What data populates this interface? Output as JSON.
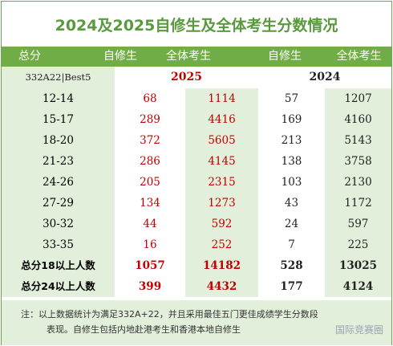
{
  "title": "2024及2025自修生及全体考生分数情况",
  "header": {
    "score_label": "总分",
    "self_2025": "自修生",
    "all_2025": "全体考生",
    "self_2024": "自修生",
    "all_2024": "全体考生"
  },
  "subheader": {
    "scheme": "332A22|Best5",
    "year_2025": "2025",
    "year_2024": "2024"
  },
  "rows": [
    {
      "band": "12-14",
      "self_2025": "68",
      "all_2025": "1114",
      "self_2024": "57",
      "all_2024": "1207"
    },
    {
      "band": "15-17",
      "self_2025": "289",
      "all_2025": "4416",
      "self_2024": "169",
      "all_2024": "4160"
    },
    {
      "band": "18-20",
      "self_2025": "372",
      "all_2025": "5605",
      "self_2024": "213",
      "all_2024": "5143"
    },
    {
      "band": "21-23",
      "self_2025": "286",
      "all_2025": "4145",
      "self_2024": "138",
      "all_2024": "3758"
    },
    {
      "band": "24-26",
      "self_2025": "205",
      "all_2025": "2315",
      "self_2024": "103",
      "all_2024": "2130"
    },
    {
      "band": "27-29",
      "self_2025": "134",
      "all_2025": "1273",
      "self_2024": "43",
      "all_2024": "1172"
    },
    {
      "band": "30-32",
      "self_2025": "44",
      "all_2025": "592",
      "self_2024": "24",
      "all_2024": "597"
    },
    {
      "band": "33-35",
      "self_2025": "16",
      "all_2025": "252",
      "self_2024": "7",
      "all_2024": "225"
    },
    {
      "band": "总分18以上人数",
      "self_2025": "1057",
      "all_2025": "14182",
      "self_2024": "528",
      "all_2024": "13025"
    },
    {
      "band": "总分24以上人数",
      "self_2025": "399",
      "all_2025": "4432",
      "self_2024": "177",
      "all_2024": "4124"
    }
  ],
  "note": {
    "line1": "注：以上数据统计为满足332A+22，并且采用最佳五门更佳成绩学生分数段",
    "line2": "表现。自修生包括内地赴港考生和香港本地自修生",
    "watermark": "国际竞赛圈"
  },
  "colors": {
    "accent_green": "#70ad47",
    "light_green": "#e2efda",
    "title_green": "#5a9a3e",
    "value_red": "#c00000"
  }
}
